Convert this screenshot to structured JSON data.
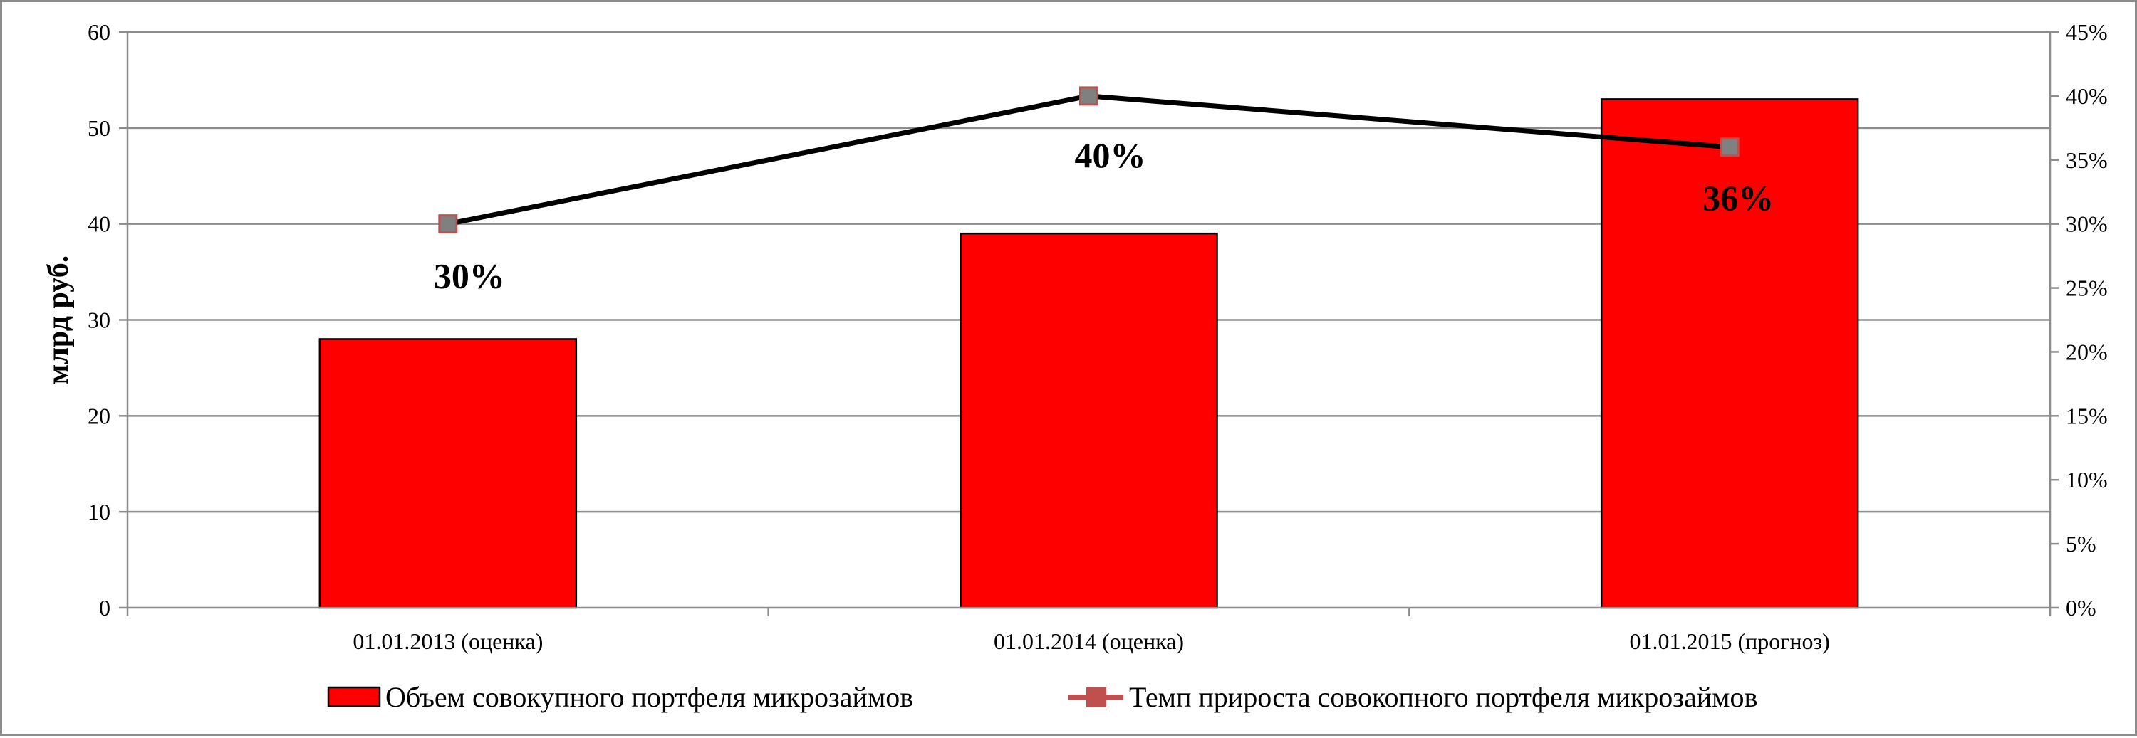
{
  "chart_data": {
    "type": "bar",
    "categories": [
      "01.01.2013 (оценка)",
      "01.01.2014 (оценка)",
      "01.01.2015 (прогноз)"
    ],
    "series": [
      {
        "name": "Объем совокупного портфеля микрозаймов",
        "type": "bar",
        "axis": "left",
        "color": "#ff0000",
        "values": [
          28,
          39,
          53
        ]
      },
      {
        "name": "Темп прироста совокопного портфеля микрозаймов",
        "type": "line",
        "axis": "right",
        "color": "#000000",
        "marker_color": "#808080",
        "marker_edge": "#c0504d",
        "values": [
          30,
          40,
          36
        ],
        "data_labels": [
          "30%",
          "40%",
          "36%"
        ]
      }
    ],
    "ylabel": "млрд руб.",
    "xlabel": "",
    "ylim": [
      0,
      60
    ],
    "yticks": [
      "0",
      "10",
      "20",
      "30",
      "40",
      "50",
      "60"
    ],
    "y2lim": [
      0,
      45
    ],
    "y2ticks": [
      "0%",
      "5%",
      "10%",
      "15%",
      "20%",
      "25%",
      "30%",
      "35%",
      "40%",
      "45%"
    ],
    "grid": true,
    "legend_position": "bottom"
  }
}
